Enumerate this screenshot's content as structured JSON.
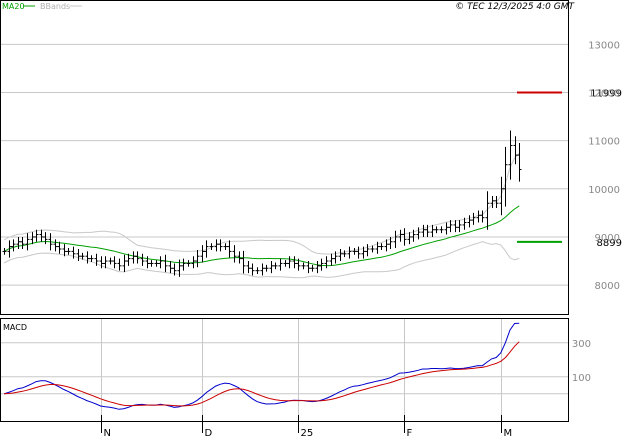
{
  "header": {
    "legend_ma": "MA20",
    "legend_bb": "BBands",
    "copyright": "© TEC 12/3/2025 4:0 GMT"
  },
  "colors": {
    "price_bar": "#000000",
    "ma": "#00a000",
    "bbands": "#c8c8c8",
    "macd_line": "#0000cc",
    "signal_line": "#cc0000",
    "resistance": "#cc0000",
    "support": "#00a000",
    "grid": "#c8c8c8",
    "frame": "#000000"
  },
  "chart_data": [
    {
      "type": "ohlc",
      "name": "price-panel",
      "yticks": [
        {
          "v": 8000,
          "t": "8000"
        },
        {
          "v": 9000,
          "t": "9000"
        },
        {
          "v": 10000,
          "t": "10000"
        },
        {
          "v": 11000,
          "t": "11000"
        },
        {
          "v": 12000,
          "t": "12000"
        },
        {
          "v": 13000,
          "t": "13000"
        }
      ],
      "ylim": [
        7400,
        13900
      ],
      "levels": [
        {
          "name": "resistance",
          "value": 11999,
          "label": "11999"
        },
        {
          "name": "support",
          "value": 8899,
          "label": "8899"
        }
      ],
      "xticks": [
        {
          "i": 21,
          "t": "N"
        },
        {
          "i": 43,
          "t": "D"
        },
        {
          "i": 64,
          "t": "25"
        },
        {
          "i": 87,
          "t": "F"
        },
        {
          "i": 108,
          "t": "M"
        }
      ],
      "close": [
        8700,
        8800,
        8850,
        8900,
        8850,
        8950,
        9000,
        9050,
        9000,
        8950,
        8850,
        8800,
        8750,
        8700,
        8700,
        8650,
        8600,
        8600,
        8550,
        8550,
        8500,
        8450,
        8500,
        8500,
        8450,
        8400,
        8500,
        8550,
        8600,
        8550,
        8500,
        8450,
        8450,
        8450,
        8500,
        8400,
        8350,
        8300,
        8400,
        8450,
        8450,
        8500,
        8600,
        8700,
        8800,
        8800,
        8850,
        8800,
        8800,
        8700,
        8600,
        8550,
        8400,
        8350,
        8300,
        8300,
        8350,
        8350,
        8400,
        8400,
        8450,
        8450,
        8500,
        8450,
        8400,
        8400,
        8350,
        8350,
        8400,
        8450,
        8500,
        8550,
        8600,
        8650,
        8650,
        8700,
        8700,
        8650,
        8700,
        8750,
        8750,
        8800,
        8800,
        8850,
        8900,
        9000,
        9050,
        8950,
        9000,
        9050,
        9100,
        9150,
        9100,
        9150,
        9150,
        9150,
        9200,
        9250,
        9200,
        9250,
        9300,
        9350,
        9400,
        9450,
        9400,
        9700,
        9750,
        9700,
        10000,
        10500,
        10900,
        10700,
        10400
      ]
    },
    {
      "type": "line",
      "name": "macd-panel",
      "title": "MACD",
      "yticks": [
        {
          "v": 100,
          "t": "100"
        },
        {
          "v": 300,
          "t": "300"
        }
      ],
      "ylim": [
        -160,
        440
      ]
    }
  ]
}
